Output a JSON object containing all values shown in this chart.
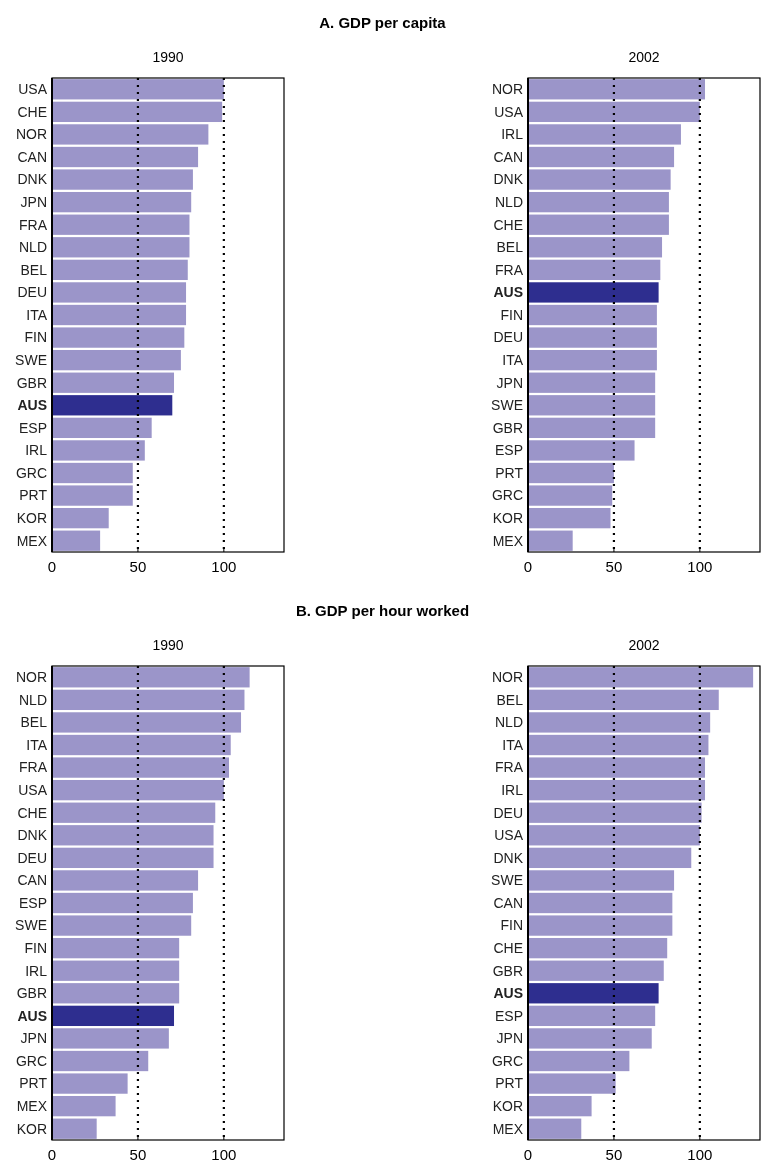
{
  "chart_data": [
    {
      "type": "bar",
      "orientation": "horizontal",
      "title": "1990",
      "annotations": [
        "A. GDP per capita"
      ],
      "categories": [
        "USA",
        "CHE",
        "NOR",
        "CAN",
        "DNK",
        "JPN",
        "FRA",
        "NLD",
        "BEL",
        "DEU",
        "ITA",
        "FIN",
        "SWE",
        "GBR",
        "AUS",
        "ESP",
        "IRL",
        "GRC",
        "PRT",
        "KOR",
        "MEX"
      ],
      "values": [
        100,
        99,
        91,
        85,
        82,
        81,
        80,
        80,
        79,
        78,
        78,
        77,
        75,
        71,
        70,
        58,
        54,
        47,
        47,
        33,
        28
      ],
      "colors": [
        "#9b95c9",
        "#9b95c9",
        "#9b95c9",
        "#9b95c9",
        "#9b95c9",
        "#9b95c9",
        "#9b95c9",
        "#9b95c9",
        "#9b95c9",
        "#9b95c9",
        "#9b95c9",
        "#9b95c9",
        "#9b95c9",
        "#9b95c9",
        "#2e2e8f",
        "#9b95c9",
        "#9b95c9",
        "#9b95c9",
        "#9b95c9",
        "#9b95c9",
        "#9b95c9"
      ],
      "xlim": [
        0,
        135
      ],
      "xticks": [
        0,
        50,
        100
      ],
      "ref_lines": [
        {
          "axis": "x",
          "value": 50,
          "line_style": "dotted",
          "color": "#000000"
        },
        {
          "axis": "x",
          "value": 100,
          "line_style": "dotted",
          "color": "#000000"
        }
      ]
    },
    {
      "type": "bar",
      "orientation": "horizontal",
      "title": "2002",
      "categories": [
        "NOR",
        "USA",
        "IRL",
        "CAN",
        "DNK",
        "NLD",
        "CHE",
        "BEL",
        "FRA",
        "AUS",
        "FIN",
        "DEU",
        "ITA",
        "JPN",
        "SWE",
        "GBR",
        "ESP",
        "PRT",
        "GRC",
        "KOR",
        "MEX"
      ],
      "values": [
        103,
        100,
        89,
        85,
        83,
        82,
        82,
        78,
        77,
        76,
        75,
        75,
        75,
        74,
        74,
        74,
        62,
        50,
        49,
        48,
        26
      ],
      "colors": [
        "#9b95c9",
        "#9b95c9",
        "#9b95c9",
        "#9b95c9",
        "#9b95c9",
        "#9b95c9",
        "#9b95c9",
        "#9b95c9",
        "#9b95c9",
        "#2e2e8f",
        "#9b95c9",
        "#9b95c9",
        "#9b95c9",
        "#9b95c9",
        "#9b95c9",
        "#9b95c9",
        "#9b95c9",
        "#9b95c9",
        "#9b95c9",
        "#9b95c9",
        "#9b95c9"
      ],
      "xlim": [
        0,
        135
      ],
      "xticks": [
        0,
        50,
        100
      ],
      "ref_lines": [
        {
          "axis": "x",
          "value": 50,
          "line_style": "dotted",
          "color": "#000000"
        },
        {
          "axis": "x",
          "value": 100,
          "line_style": "dotted",
          "color": "#000000"
        }
      ]
    },
    {
      "type": "bar",
      "orientation": "horizontal",
      "title": "1990",
      "annotations": [
        "B. GDP per hour worked"
      ],
      "categories": [
        "NOR",
        "NLD",
        "BEL",
        "ITA",
        "FRA",
        "USA",
        "CHE",
        "DNK",
        "DEU",
        "CAN",
        "ESP",
        "SWE",
        "FIN",
        "IRL",
        "GBR",
        "AUS",
        "JPN",
        "GRC",
        "PRT",
        "MEX",
        "KOR"
      ],
      "values": [
        115,
        112,
        110,
        104,
        103,
        100,
        95,
        94,
        94,
        85,
        82,
        81,
        74,
        74,
        74,
        71,
        68,
        56,
        44,
        37,
        26
      ],
      "colors": [
        "#9b95c9",
        "#9b95c9",
        "#9b95c9",
        "#9b95c9",
        "#9b95c9",
        "#9b95c9",
        "#9b95c9",
        "#9b95c9",
        "#9b95c9",
        "#9b95c9",
        "#9b95c9",
        "#9b95c9",
        "#9b95c9",
        "#9b95c9",
        "#9b95c9",
        "#2e2e8f",
        "#9b95c9",
        "#9b95c9",
        "#9b95c9",
        "#9b95c9",
        "#9b95c9"
      ],
      "xlim": [
        0,
        135
      ],
      "xticks": [
        0,
        50,
        100
      ],
      "ref_lines": [
        {
          "axis": "x",
          "value": 50,
          "line_style": "dotted",
          "color": "#000000"
        },
        {
          "axis": "x",
          "value": 100,
          "line_style": "dotted",
          "color": "#000000"
        }
      ]
    },
    {
      "type": "bar",
      "orientation": "horizontal",
      "title": "2002",
      "categories": [
        "NOR",
        "BEL",
        "NLD",
        "ITA",
        "FRA",
        "IRL",
        "DEU",
        "USA",
        "DNK",
        "SWE",
        "CAN",
        "FIN",
        "CHE",
        "GBR",
        "AUS",
        "ESP",
        "JPN",
        "GRC",
        "PRT",
        "KOR",
        "MEX"
      ],
      "values": [
        131,
        111,
        106,
        105,
        103,
        103,
        101,
        100,
        95,
        85,
        84,
        84,
        81,
        79,
        76,
        74,
        72,
        59,
        51,
        37,
        31
      ],
      "colors": [
        "#9b95c9",
        "#9b95c9",
        "#9b95c9",
        "#9b95c9",
        "#9b95c9",
        "#9b95c9",
        "#9b95c9",
        "#9b95c9",
        "#9b95c9",
        "#9b95c9",
        "#9b95c9",
        "#9b95c9",
        "#9b95c9",
        "#9b95c9",
        "#2e2e8f",
        "#9b95c9",
        "#9b95c9",
        "#9b95c9",
        "#9b95c9",
        "#9b95c9",
        "#9b95c9"
      ],
      "xlim": [
        0,
        135
      ],
      "xticks": [
        0,
        50,
        100
      ],
      "ref_lines": [
        {
          "axis": "x",
          "value": 50,
          "line_style": "dotted",
          "color": "#000000"
        },
        {
          "axis": "x",
          "value": 100,
          "line_style": "dotted",
          "color": "#000000"
        }
      ]
    }
  ]
}
